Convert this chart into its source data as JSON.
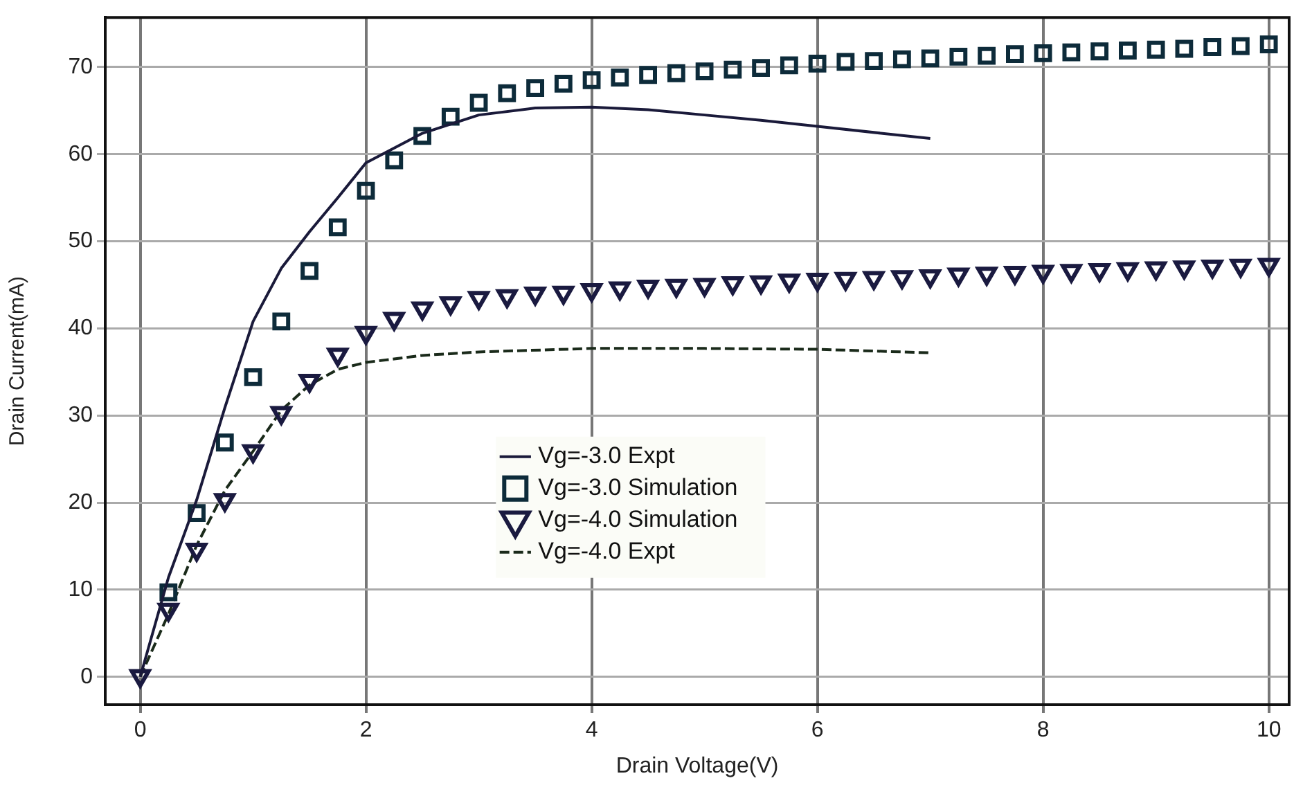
{
  "chart_data": {
    "type": "line",
    "xlabel": "Drain Voltage(V)",
    "ylabel": "Drain Current(mA)",
    "xlim": [
      -0.31,
      10.18
    ],
    "ylim": [
      -3.2,
      75.7
    ],
    "xticks": [
      0,
      2,
      4,
      6,
      8,
      10
    ],
    "yticks": [
      0,
      10,
      20,
      30,
      40,
      50,
      60,
      70
    ],
    "grid": true,
    "legend": "center",
    "series": [
      {
        "name": "Vg=-3.0 Expt",
        "color": "#1a1a3a",
        "line_style": "solid",
        "marker": "none",
        "x": [
          0,
          0.25,
          0.5,
          0.75,
          1,
          1.25,
          1.5,
          1.75,
          2,
          2.5,
          3,
          3.5,
          4,
          4.5,
          5,
          5.5,
          6,
          7
        ],
        "values": [
          0,
          11.4,
          20.3,
          30.9,
          40.8,
          46.9,
          51.1,
          55,
          59,
          62.4,
          64.5,
          65.3,
          65.4,
          65.1,
          64.5,
          63.9,
          63.2,
          61.8
        ]
      },
      {
        "name": "Vg=-3.0 Simulation",
        "type": "scatter",
        "color": "#0d2b3a",
        "marker": "square",
        "x": [
          0.25,
          0.5,
          0.75,
          1,
          1.25,
          1.5,
          1.75,
          2,
          2.25,
          2.5,
          2.75,
          3,
          3.25,
          3.5,
          3.75,
          4,
          4.25,
          4.5,
          4.75,
          5,
          5.25,
          5.5,
          5.75,
          6,
          6.25,
          6.5,
          6.75,
          7,
          7.25,
          7.5,
          7.75,
          8,
          8.25,
          8.5,
          8.75,
          9,
          9.25,
          9.5,
          9.75,
          10
        ],
        "values": [
          9.7,
          18.8,
          26.9,
          34.4,
          40.8,
          46.6,
          51.6,
          55.8,
          59.3,
          62.1,
          64.3,
          65.9,
          67,
          67.6,
          68.1,
          68.5,
          68.8,
          69.1,
          69.3,
          69.5,
          69.7,
          69.9,
          70.2,
          70.4,
          70.6,
          70.7,
          70.9,
          71,
          71.2,
          71.3,
          71.5,
          71.6,
          71.7,
          71.8,
          71.9,
          72,
          72.1,
          72.3,
          72.4,
          72.6
        ]
      },
      {
        "name": "Vg=-4.0 Simulation",
        "type": "scatter",
        "color": "#1a1a40",
        "marker": "triangle",
        "x": [
          0,
          0.25,
          0.5,
          0.75,
          1,
          1.25,
          1.5,
          1.75,
          2,
          2.25,
          2.5,
          2.75,
          3,
          3.25,
          3.5,
          3.75,
          4,
          4.25,
          4.5,
          4.75,
          5,
          5.25,
          5.5,
          5.75,
          6,
          6.25,
          6.5,
          6.75,
          7,
          7.25,
          7.5,
          7.75,
          8,
          8.25,
          8.5,
          8.75,
          9,
          9.25,
          9.5,
          9.75,
          10
        ],
        "values": [
          0.1,
          7.7,
          14.6,
          20.3,
          25.9,
          30.3,
          34,
          37,
          39.5,
          41.1,
          42.3,
          42.9,
          43.5,
          43.7,
          44,
          44.1,
          44.4,
          44.6,
          44.8,
          44.9,
          45,
          45.2,
          45.3,
          45.5,
          45.6,
          45.7,
          45.8,
          45.9,
          46,
          46.2,
          46.3,
          46.4,
          46.5,
          46.6,
          46.7,
          46.8,
          46.9,
          47,
          47.1,
          47.2,
          47.3
        ]
      },
      {
        "name": "Vg=-4.0 Expt",
        "color": "#1a2a1a",
        "line_style": "dashed",
        "marker": "none",
        "x": [
          0,
          0.25,
          0.5,
          0.75,
          1,
          1.25,
          1.5,
          1.75,
          2,
          2.5,
          3,
          4,
          5,
          6,
          7
        ],
        "values": [
          0,
          7.2,
          15.1,
          21.4,
          25.9,
          30.6,
          33.5,
          35.3,
          36.1,
          36.9,
          37.3,
          37.7,
          37.7,
          37.6,
          37.2
        ]
      }
    ]
  }
}
